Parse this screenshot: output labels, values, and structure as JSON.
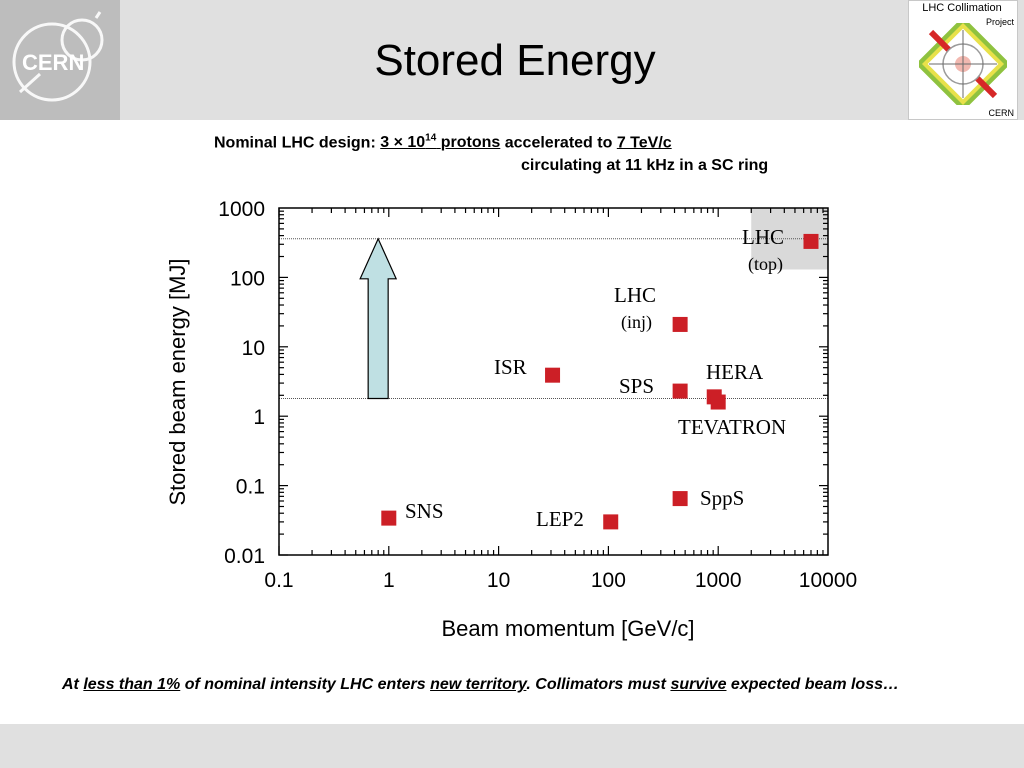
{
  "header": {
    "title": "Stored Energy",
    "cern_logo_text": "CERN",
    "collimation_logo": {
      "title": "LHC Collimation",
      "project": "Project",
      "cern": "CERN"
    }
  },
  "subtitle": {
    "prefix": "Nominal LHC design:",
    "protons_mantissa": "3 × 10",
    "protons_exp": "14",
    "protons_unit": "protons",
    "accel_text": "accelerated to",
    "energy": "7 TeV/c",
    "line2": "circulating at 11 kHz in a SC ring"
  },
  "footer": {
    "t1": "At ",
    "e1": "less than 1%",
    "t2": " of nominal intensity LHC enters ",
    "e2": "new territory",
    "t3": ". Collimators must ",
    "e3": "survive",
    "t4": " expected beam loss…"
  },
  "colors": {
    "marker": "#cc1f26",
    "arrow_fill": "#bfe0e3",
    "highlight_box": "#d9d9d9"
  },
  "chart_data": {
    "type": "scatter",
    "xlabel": "Beam momentum [GeV/c]",
    "ylabel": "Stored beam energy [MJ]",
    "xscale": "log",
    "yscale": "log",
    "xlim": [
      0.1,
      10000
    ],
    "ylim": [
      0.01,
      1000
    ],
    "xticks": [
      "0.1",
      "1",
      "10",
      "100",
      "1000",
      "10000"
    ],
    "yticks": [
      "0.01",
      "0.1",
      "1",
      "10",
      "100",
      "1000"
    ],
    "reference_lines_y": [
      360,
      1.8
    ],
    "highlight": {
      "label": "LHC (top)",
      "x_from": 2000,
      "x_to": 10000,
      "y_from": 130,
      "y_to": 1000
    },
    "points": [
      {
        "label": "SNS",
        "x": 1,
        "y": 0.034
      },
      {
        "label": "ISR",
        "x": 31,
        "y": 3.9
      },
      {
        "label": "LEP2",
        "x": 105,
        "y": 0.03
      },
      {
        "label": "LHC (inj)",
        "x": 450,
        "y": 21
      },
      {
        "label": "SPS",
        "x": 450,
        "y": 2.3
      },
      {
        "label": "SppS",
        "x": 450,
        "y": 0.065
      },
      {
        "label": "HERA",
        "x": 920,
        "y": 1.9
      },
      {
        "label": "TEVATRON",
        "x": 1000,
        "y": 1.6
      },
      {
        "label": "LHC (top)",
        "x": 7000,
        "y": 330
      }
    ],
    "labels": {
      "sns": "SNS",
      "isr": "ISR",
      "lep2": "LEP2",
      "lhc_inj_1": "LHC",
      "lhc_inj_2": "(inj)",
      "sps": "SPS",
      "spps": "SppS",
      "hera": "HERA",
      "tevatron": "TEVATRON",
      "lhc_top_1": "LHC",
      "lhc_top_2": "(top)"
    },
    "arrow": {
      "x": 0.8,
      "y_from": 1.8,
      "y_to": 360
    }
  }
}
